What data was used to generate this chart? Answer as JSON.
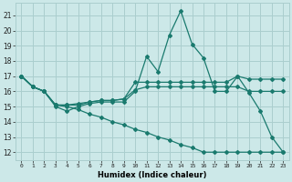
{
  "xlabel": "Humidex (Indice chaleur)",
  "x": [
    0,
    1,
    2,
    3,
    4,
    5,
    6,
    7,
    8,
    9,
    10,
    11,
    12,
    13,
    14,
    15,
    16,
    17,
    18,
    19,
    20,
    21,
    22,
    23
  ],
  "line1": [
    17,
    16.3,
    16,
    15,
    14.7,
    15,
    15.2,
    15.3,
    15.3,
    15.3,
    16,
    18.3,
    17.3,
    19.7,
    21.3,
    19.1,
    18.2,
    16,
    16,
    17,
    15.9,
    14.7,
    13,
    12
  ],
  "line2": [
    17,
    16.3,
    16,
    15.1,
    15.1,
    15.1,
    15.3,
    15.4,
    15.4,
    15.5,
    16.6,
    16.6,
    16.6,
    16.6,
    16.6,
    16.6,
    16.6,
    16.6,
    16.6,
    17.0,
    16.8,
    16.8,
    16.8,
    16.8
  ],
  "line3": [
    17,
    16.3,
    16,
    15.1,
    15.1,
    15.2,
    15.3,
    15.4,
    15.4,
    15.5,
    16.1,
    16.3,
    16.3,
    16.3,
    16.3,
    16.3,
    16.3,
    16.3,
    16.3,
    16.3,
    16.0,
    16.0,
    16.0,
    16.0
  ],
  "line4": [
    17,
    16.3,
    16,
    15.1,
    15.0,
    14.8,
    14.5,
    14.3,
    14.0,
    13.8,
    13.5,
    13.3,
    13.0,
    12.8,
    12.5,
    12.3,
    12.0,
    12.0,
    12.0,
    12.0,
    12.0,
    12.0,
    12.0,
    12.0
  ],
  "color": "#1a7a6e",
  "bg_color": "#cce8e8",
  "grid_color": "#aacece",
  "ylim_min": 11.5,
  "ylim_max": 21.8,
  "yticks": [
    12,
    13,
    14,
    15,
    16,
    17,
    18,
    19,
    20,
    21
  ],
  "xticks": [
    0,
    1,
    2,
    3,
    4,
    5,
    6,
    7,
    8,
    9,
    10,
    11,
    12,
    13,
    14,
    15,
    16,
    17,
    18,
    19,
    20,
    21,
    22,
    23
  ]
}
